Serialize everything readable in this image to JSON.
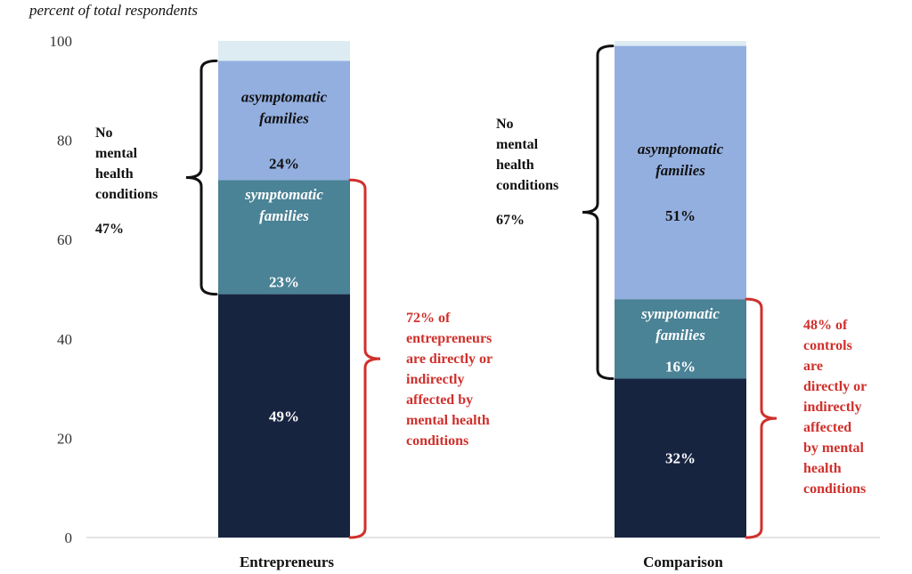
{
  "chart_data": {
    "type": "bar",
    "stacked": true,
    "ylabel": "percent of total respondents",
    "ylim": [
      0,
      100
    ],
    "yticks": [
      0,
      20,
      40,
      60,
      80,
      100
    ],
    "grid": false,
    "categories": [
      "Entrepreneurs",
      "Comparison"
    ],
    "series": [
      {
        "name": "",
        "values": [
          49,
          32
        ],
        "labels": [
          "49%",
          "32%"
        ],
        "color": "#172440",
        "label_color": "#ffffff"
      },
      {
        "name": "symptomatic families",
        "values": [
          23,
          16
        ],
        "labels": [
          "23%",
          "16%"
        ],
        "color": "#4a8296",
        "label_color": "#ffffff"
      },
      {
        "name": "asymptomatic families",
        "values": [
          24,
          51
        ],
        "labels": [
          "24%",
          "51%"
        ],
        "color": "#93afe0",
        "label_color": "#111111"
      },
      {
        "name": "",
        "values": [
          4,
          1
        ],
        "labels": [
          "",
          ""
        ],
        "color": "#dcecf2",
        "label_color": "#111111"
      }
    ],
    "series_name_colors": [
      "#ffffff",
      "#ffffff",
      "#111111",
      "#111111"
    ],
    "annotations": {
      "no_condition": [
        {
          "lines": [
            "No",
            "mental",
            "health",
            "conditions"
          ],
          "pct": "47%",
          "color": "#111111",
          "from": 49,
          "to": 96
        },
        {
          "lines": [
            "No",
            "mental",
            "health",
            "conditions"
          ],
          "pct": "67%",
          "color": "#111111",
          "from": 32,
          "to": 99
        }
      ],
      "affected": [
        {
          "lines": [
            "72% of",
            "entrepreneurs",
            "are directly or",
            "indirectly",
            "affected by",
            "mental health",
            "conditions"
          ],
          "color": "#d0302c",
          "from": 0,
          "to": 72
        },
        {
          "lines": [
            "48% of",
            "controls",
            "are",
            "directly or",
            "indirectly",
            "affected",
            "by mental",
            "health",
            "conditions"
          ],
          "color": "#d0302c",
          "from": 0,
          "to": 48
        }
      ]
    }
  }
}
